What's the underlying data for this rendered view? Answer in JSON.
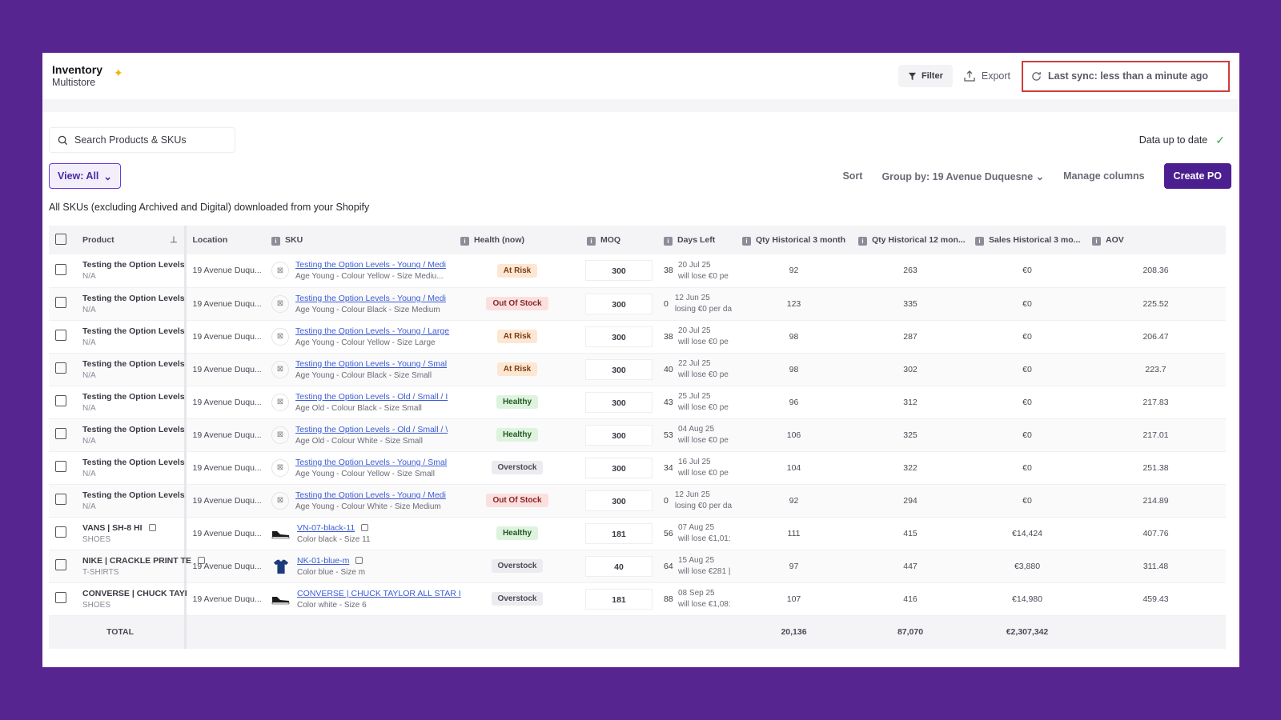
{
  "app": {
    "title": "Inventory",
    "subtitle": "Multistore"
  },
  "toolbar": {
    "filter_label": "Filter",
    "export_label": "Export",
    "sync_label": "Last sync: less than a minute ago"
  },
  "search": {
    "placeholder": "Search Products & SKUs"
  },
  "status": {
    "data_label": "Data up to date"
  },
  "controls": {
    "view_label": "View: All",
    "sort_label": "Sort",
    "group_label": "Group by: 19 Avenue Duquesne",
    "manage_label": "Manage columns",
    "create_po_label": "Create PO"
  },
  "description": "All SKUs (excluding Archived and Digital) downloaded from your Shopify",
  "table": {
    "columns": {
      "product": "Product",
      "location": "Location",
      "sku": "SKU",
      "health": "Health (now)",
      "moq": "MOQ",
      "days_left": "Days Left",
      "qty3": "Qty Historical 3 month",
      "qty12": "Qty Historical 12 mon...",
      "sales3": "Sales Historical 3 mo...",
      "aov": "AOV"
    },
    "rows": [
      {
        "product": "Testing the Option Levels",
        "product_sub": "N/A",
        "location": "19 Avenue Duqu...",
        "sku": "Testing the Option Levels - Young / Medi",
        "sku_sub": "Age Young - Colour Yellow - Size Mediu...",
        "thumb": "placeholder",
        "health": "At Risk",
        "moq": "300",
        "days": "38",
        "days_date": "20 Jul 25",
        "days_note": "will lose €0 pe",
        "qty3": "92",
        "qty12": "263",
        "sales3": "€0",
        "aov": "208.36"
      },
      {
        "product": "Testing the Option Levels",
        "product_sub": "N/A",
        "location": "19 Avenue Duqu...",
        "sku": "Testing the Option Levels - Young / Medi",
        "sku_sub": "Age Young - Colour Black - Size Medium",
        "thumb": "placeholder",
        "health": "Out Of Stock",
        "moq": "300",
        "days": "0",
        "days_date": "12 Jun 25",
        "days_note": "losing €0 per da",
        "qty3": "123",
        "qty12": "335",
        "sales3": "€0",
        "aov": "225.52"
      },
      {
        "product": "Testing the Option Levels",
        "product_sub": "N/A",
        "location": "19 Avenue Duqu...",
        "sku": "Testing the Option Levels - Young / Large",
        "sku_sub": "Age Young - Colour Yellow - Size Large",
        "thumb": "placeholder",
        "health": "At Risk",
        "moq": "300",
        "days": "38",
        "days_date": "20 Jul 25",
        "days_note": "will lose €0 pe",
        "qty3": "98",
        "qty12": "287",
        "sales3": "€0",
        "aov": "206.47"
      },
      {
        "product": "Testing the Option Levels",
        "product_sub": "N/A",
        "location": "19 Avenue Duqu...",
        "sku": "Testing the Option Levels - Young / Smal",
        "sku_sub": "Age Young - Colour Black - Size Small",
        "thumb": "placeholder",
        "health": "At Risk",
        "moq": "300",
        "days": "40",
        "days_date": "22 Jul 25",
        "days_note": "will lose €0 pe",
        "qty3": "98",
        "qty12": "302",
        "sales3": "€0",
        "aov": "223.7"
      },
      {
        "product": "Testing the Option Levels",
        "product_sub": "N/A",
        "location": "19 Avenue Duqu...",
        "sku": "Testing the Option Levels - Old / Small / I",
        "sku_sub": "Age Old - Colour Black - Size Small",
        "thumb": "placeholder",
        "health": "Healthy",
        "moq": "300",
        "days": "43",
        "days_date": "25 Jul 25",
        "days_note": "will lose €0 pe",
        "qty3": "96",
        "qty12": "312",
        "sales3": "€0",
        "aov": "217.83"
      },
      {
        "product": "Testing the Option Levels",
        "product_sub": "N/A",
        "location": "19 Avenue Duqu...",
        "sku": "Testing the Option Levels - Old / Small / \\",
        "sku_sub": "Age Old - Colour White - Size Small",
        "thumb": "placeholder",
        "health": "Healthy",
        "moq": "300",
        "days": "53",
        "days_date": "04 Aug 25",
        "days_note": "will lose €0 pe",
        "qty3": "106",
        "qty12": "325",
        "sales3": "€0",
        "aov": "217.01"
      },
      {
        "product": "Testing the Option Levels",
        "product_sub": "N/A",
        "location": "19 Avenue Duqu...",
        "sku": "Testing the Option Levels - Young / Smal",
        "sku_sub": "Age Young - Colour Yellow - Size Small",
        "thumb": "placeholder",
        "health": "Overstock",
        "moq": "300",
        "days": "34",
        "days_date": "16 Jul 25",
        "days_note": "will lose €0 pe",
        "qty3": "104",
        "qty12": "322",
        "sales3": "€0",
        "aov": "251.38"
      },
      {
        "product": "Testing the Option Levels",
        "product_sub": "N/A",
        "location": "19 Avenue Duqu...",
        "sku": "Testing the Option Levels - Young / Medi",
        "sku_sub": "Age Young - Colour White - Size Medium",
        "thumb": "placeholder",
        "health": "Out Of Stock",
        "moq": "300",
        "days": "0",
        "days_date": "12 Jun 25",
        "days_note": "losing €0 per da",
        "qty3": "92",
        "qty12": "294",
        "sales3": "€0",
        "aov": "214.89"
      },
      {
        "product": "VANS | SH-8 HI",
        "product_sub": "SHOES",
        "location": "19 Avenue Duqu...",
        "sku": "VN-07-black-11",
        "sku_sub": "Color black - Size 11",
        "thumb": "shoe-black",
        "health": "Healthy",
        "moq": "181",
        "days": "56",
        "days_date": "07 Aug 25",
        "days_note": "will lose €1,01:",
        "qty3": "111",
        "qty12": "415",
        "sales3": "€14,424",
        "aov": "407.76",
        "copy": true
      },
      {
        "product": "NIKE | CRACKLE PRINT TE",
        "product_sub": "T-SHIRTS",
        "location": "19 Avenue Duqu...",
        "sku": "NK-01-blue-m",
        "sku_sub": "Color blue - Size m",
        "thumb": "tshirt-blue",
        "health": "Overstock",
        "moq": "40",
        "days": "64",
        "days_date": "15 Aug 25",
        "days_note": "will lose €281 |",
        "qty3": "97",
        "qty12": "447",
        "sales3": "€3,880",
        "aov": "311.48",
        "copy": true
      },
      {
        "product": "CONVERSE | CHUCK TAYI",
        "product_sub": "SHOES",
        "location": "19 Avenue Duqu...",
        "sku": "CONVERSE | CHUCK TAYLOR ALL STAR I",
        "sku_sub": "Color white - Size 6",
        "thumb": "shoe-black",
        "health": "Overstock",
        "moq": "181",
        "days": "88",
        "days_date": "08 Sep 25",
        "days_note": "will lose €1,08:",
        "qty3": "107",
        "qty12": "416",
        "sales3": "€14,980",
        "aov": "459.43"
      }
    ],
    "footer": {
      "label": "TOTAL",
      "qty3": "20,136",
      "qty12": "87,070",
      "sales3": "€2,307,342"
    }
  },
  "colors": {
    "background": "#56258f",
    "accent": "#4b1f8f",
    "link": "#3b5bd6",
    "highlight": "#d23b3b"
  }
}
